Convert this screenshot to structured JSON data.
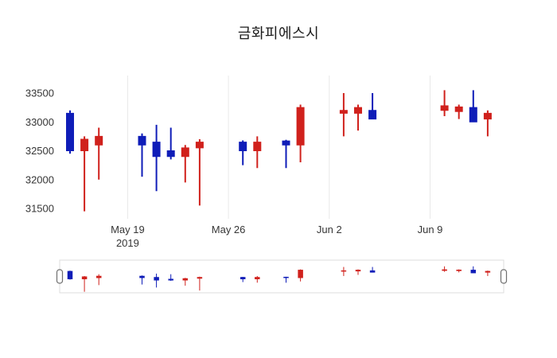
{
  "title": "금화피에스시",
  "colors": {
    "up": "#d0211c",
    "down": "#0f1db8",
    "grid": "#e8e8e8",
    "axis_text": "#363636",
    "slider_border": "#dddddd",
    "handle_border": "#6f6f6f",
    "handle_fill": "#ffffff",
    "background": "#ffffff"
  },
  "chart_data": {
    "type": "candlestick",
    "title": "금화피에스시",
    "ylabel": "",
    "xlabel": "",
    "y_ticks": [
      31500,
      32000,
      32500,
      33000,
      33500
    ],
    "y_range": [
      31300,
      33800
    ],
    "x_ticks": [
      {
        "label": "May 19",
        "sublabel": "2019",
        "day": 4
      },
      {
        "label": "May 26",
        "sublabel": "",
        "day": 11
      },
      {
        "label": "Jun 2",
        "sublabel": "",
        "day": 18
      },
      {
        "label": "Jun 9",
        "sublabel": "",
        "day": 25
      }
    ],
    "grid": "vertical-only",
    "legend": "none",
    "rangeslider": true,
    "candles": [
      {
        "day": 0,
        "open": 33150,
        "high": 33200,
        "low": 32450,
        "close": 32500
      },
      {
        "day": 1,
        "open": 32500,
        "high": 32750,
        "low": 31450,
        "close": 32700
      },
      {
        "day": 2,
        "open": 32600,
        "high": 32900,
        "low": 32000,
        "close": 32750
      },
      {
        "day": 5,
        "open": 32750,
        "high": 32800,
        "low": 32050,
        "close": 32600
      },
      {
        "day": 6,
        "open": 32650,
        "high": 32950,
        "low": 31800,
        "close": 32400
      },
      {
        "day": 7,
        "open": 32500,
        "high": 32900,
        "low": 32350,
        "close": 32400
      },
      {
        "day": 8,
        "open": 32400,
        "high": 32600,
        "low": 31950,
        "close": 32550
      },
      {
        "day": 9,
        "open": 32550,
        "high": 32700,
        "low": 31550,
        "close": 32650
      },
      {
        "day": 12,
        "open": 32650,
        "high": 32680,
        "low": 32250,
        "close": 32500
      },
      {
        "day": 13,
        "open": 32500,
        "high": 32750,
        "low": 32200,
        "close": 32650
      },
      {
        "day": 15,
        "open": 32670,
        "high": 32690,
        "low": 32200,
        "close": 32600
      },
      {
        "day": 16,
        "open": 32600,
        "high": 33300,
        "low": 32300,
        "close": 33250
      },
      {
        "day": 19,
        "open": 33150,
        "high": 33500,
        "low": 32750,
        "close": 33200
      },
      {
        "day": 20,
        "open": 33150,
        "high": 33300,
        "low": 32850,
        "close": 33250
      },
      {
        "day": 21,
        "open": 33200,
        "high": 33500,
        "low": 33050,
        "close": 33050
      },
      {
        "day": 26,
        "open": 33200,
        "high": 33550,
        "low": 33100,
        "close": 33280
      },
      {
        "day": 27,
        "open": 33180,
        "high": 33300,
        "low": 33050,
        "close": 33260
      },
      {
        "day": 28,
        "open": 33250,
        "high": 33550,
        "low": 33000,
        "close": 33000
      },
      {
        "day": 29,
        "open": 33050,
        "high": 33200,
        "low": 32750,
        "close": 33150
      }
    ]
  }
}
